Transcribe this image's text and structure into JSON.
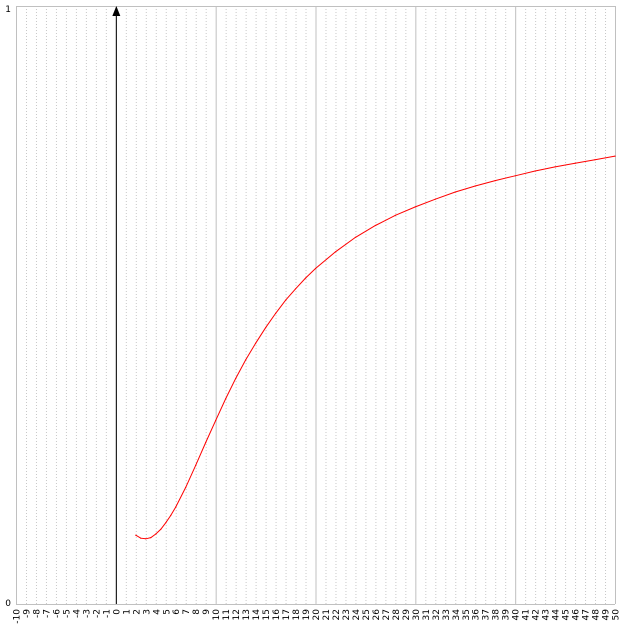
{
  "chart_data": {
    "type": "line",
    "title": "",
    "xlabel": "",
    "ylabel": "",
    "xlim": [
      -10,
      50
    ],
    "ylim": [
      0,
      1
    ],
    "grid": true,
    "y_tick_labels": [
      "0",
      "1"
    ],
    "x_tick_labels": [
      "-10",
      "-9",
      "-8",
      "-7",
      "-6",
      "-5",
      "-4",
      "-3",
      "-2",
      "-1",
      "0",
      "1",
      "2",
      "3",
      "4",
      "5",
      "6",
      "7",
      "8",
      "9",
      "10",
      "11",
      "12",
      "13",
      "14",
      "15",
      "16",
      "17",
      "18",
      "19",
      "20",
      "21",
      "22",
      "23",
      "24",
      "25",
      "26",
      "27",
      "28",
      "29",
      "30",
      "31",
      "32",
      "33",
      "34",
      "35",
      "36",
      "37",
      "38",
      "39",
      "40",
      "41",
      "42",
      "43",
      "44",
      "45",
      "46",
      "47",
      "48",
      "49",
      "50"
    ],
    "colors": {
      "series": "#ff0000",
      "axis": "#000000",
      "major_grid": "#c0c0c0",
      "minor_grid": "#c8c8c8",
      "frame": "#c0c0c0"
    },
    "series": [
      {
        "x": [
          2,
          2.5,
          3,
          3.5,
          4,
          4.5,
          5,
          5.5,
          6,
          7,
          8,
          9,
          10,
          11,
          12,
          13,
          14,
          15,
          16,
          17,
          18,
          19,
          20,
          22,
          24,
          26,
          28,
          30,
          32,
          34,
          36,
          38,
          40,
          42,
          44,
          46,
          48,
          50
        ],
        "y": [
          0.115,
          0.11,
          0.109,
          0.111,
          0.117,
          0.125,
          0.136,
          0.148,
          0.162,
          0.195,
          0.232,
          0.27,
          0.307,
          0.343,
          0.377,
          0.408,
          0.436,
          0.462,
          0.486,
          0.508,
          0.527,
          0.545,
          0.561,
          0.589,
          0.613,
          0.633,
          0.65,
          0.664,
          0.677,
          0.689,
          0.699,
          0.708,
          0.716,
          0.724,
          0.731,
          0.737,
          0.743,
          0.749
        ]
      }
    ]
  }
}
